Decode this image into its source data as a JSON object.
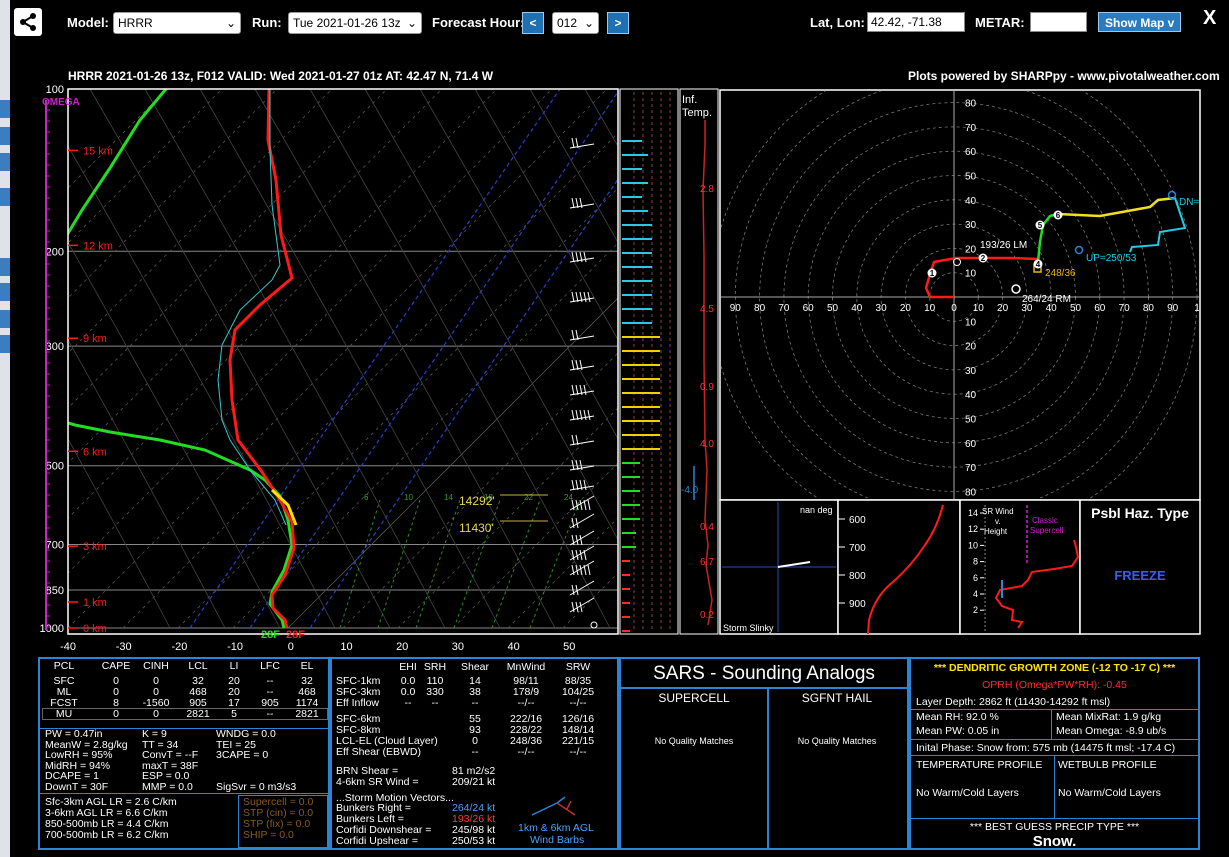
{
  "toolbar": {
    "model_label": "Model:",
    "model_value": "HRRR",
    "run_label": "Run:",
    "run_value": "Tue 2021-01-26 13z",
    "fhour_label": "Forecast Hour:",
    "prev": "<",
    "fhour_value": "012",
    "next": ">",
    "latlon_label": "Lat, Lon:",
    "latlon_value": "42.42, -71.38",
    "metar_label": "METAR:",
    "metar_value": "",
    "showmap": "Show Map v",
    "close": "X"
  },
  "header": {
    "title": "HRRR 2021-01-26 13z, F012  VALID: Wed 2021-01-27 01z  AT: 42.47 N, 71.4 W",
    "credit": "Plots powered by SHARPpy - www.pivotalweather.com"
  },
  "skewt": {
    "omega_label": "OMEGA",
    "pressure_labels": [
      {
        "p": 100,
        "t": "100"
      },
      {
        "p": 200,
        "t": "200"
      },
      {
        "p": 300,
        "t": "300"
      },
      {
        "p": 500,
        "t": "500"
      },
      {
        "p": 700,
        "t": "700"
      },
      {
        "p": 850,
        "t": "850"
      },
      {
        "p": 1000,
        "t": "1000"
      }
    ],
    "height_labels": [
      {
        "y_p": 130,
        "t": "15 km"
      },
      {
        "y_p": 195,
        "t": "12 km"
      },
      {
        "y_p": 290,
        "t": "9 km"
      },
      {
        "y_p": 470,
        "t": "6 km"
      },
      {
        "y_p": 705,
        "t": "3 km"
      },
      {
        "y_p": 895,
        "t": "1 km"
      },
      {
        "y_p": 1000,
        "t": "0 km"
      }
    ],
    "t_ticks": [
      "-40",
      "-30",
      "-20",
      "-10",
      "0",
      "10",
      "20",
      "30",
      "40",
      "50"
    ],
    "mixratio_labels": [
      "6",
      "10",
      "14",
      "18",
      "22",
      "24"
    ],
    "sfc_t": "28F",
    "sfc_td": "28F",
    "dgz_top": "14292'",
    "dgz_bot": "11430'"
  },
  "inferred_temp": {
    "label_line1": "Inf.",
    "label_line2": "Temp.",
    "values": [
      "2.8",
      "4.5",
      "0.9",
      "4.0",
      "-4.0",
      "0.4",
      "6.7",
      "0.2"
    ]
  },
  "hodograph": {
    "rings_y_up": [
      "80",
      "70",
      "60",
      "50",
      "40",
      "30",
      "20",
      "10"
    ],
    "rings_x": [
      "00",
      "90",
      "80",
      "70",
      "60",
      "50",
      "40",
      "30",
      "20",
      "10",
      "0",
      "10",
      "20",
      "30",
      "40",
      "50",
      "60",
      "70",
      "80",
      "90",
      "1"
    ],
    "rings_y_down": [
      "10",
      "20",
      "30",
      "40",
      "50",
      "60",
      "70",
      "80"
    ],
    "lm_label": "193/26 LM",
    "rm_label": "264/24 RM",
    "dn_label": "DN=",
    "up_label": "UP=250/53",
    "tag_label": "248/36",
    "points": [
      "1",
      "2",
      "3",
      "4",
      "5",
      "6"
    ]
  },
  "slinky": {
    "title": "nan deg",
    "label": "Storm Slinky"
  },
  "theta": {
    "ticks": [
      "600",
      "700",
      "800",
      "900"
    ]
  },
  "srwind": {
    "label1": "SR Wind",
    "label2": "v.",
    "label3": "Height",
    "classic1": "Classic",
    "classic2": "Supercell",
    "ticks": [
      "14",
      "12",
      "10",
      "8",
      "6",
      "4",
      "2"
    ]
  },
  "haz": {
    "title": "Psbl Haz. Type",
    "value": "FREEZE"
  },
  "parcel_table": {
    "headers": [
      "PCL",
      "CAPE",
      "CINH",
      "LCL",
      "LI",
      "LFC",
      "EL"
    ],
    "rows": [
      [
        "SFC",
        "0",
        "0",
        "32",
        "20",
        "--",
        "32"
      ],
      [
        "ML",
        "0",
        "0",
        "468",
        "20",
        "--",
        "468"
      ],
      [
        "FCST",
        "8",
        "-1560",
        "905",
        "17",
        "905",
        "1174"
      ],
      [
        "MU",
        "0",
        "0",
        "2821",
        "5",
        "--",
        "2821"
      ]
    ],
    "indices": [
      [
        "PW = 0.47in",
        "K = 9",
        "WNDG = 0.0"
      ],
      [
        "MeanW = 2.8g/kg",
        "TT = 34",
        "TEI = 25"
      ],
      [
        "LowRH = 95%",
        "ConvT = --F",
        "3CAPE = 0"
      ],
      [
        "MidRH = 94%",
        "maxT = 38F",
        ""
      ],
      [
        "DCAPE = 1",
        "ESP = 0.0",
        ""
      ],
      [
        "DownT = 30F",
        "MMP = 0.0",
        "SigSvr = 0 m3/s3"
      ]
    ],
    "lapse": [
      "Sfc-3km AGL LR = 2.6 C/km",
      "3-6km AGL LR = 6.6 C/km",
      "850-500mb LR = 4.4 C/km",
      "700-500mb LR = 6.2 C/km"
    ],
    "composites": [
      "Supercell = 0.0",
      "STP (cin) = 0.0",
      "STP (fix) = 0.0",
      "SHIP = 0.0"
    ]
  },
  "kin_table": {
    "headers": [
      "EHI",
      "SRH",
      "Shear",
      "MnWind",
      "SRW"
    ],
    "rows": [
      [
        "SFC-1km",
        "0.0",
        "110",
        "14",
        "98/11",
        "88/35"
      ],
      [
        "SFC-3km",
        "0.0",
        "330",
        "38",
        "178/9",
        "104/25"
      ],
      [
        "Eff Inflow",
        "--",
        "--",
        "--",
        "--/--",
        "--/--"
      ],
      [
        "SFC-6km",
        "",
        "",
        "55",
        "222/16",
        "126/16"
      ],
      [
        "SFC-8km",
        "",
        "",
        "93",
        "228/22",
        "148/14"
      ],
      [
        "LCL-EL (Cloud Layer)",
        "",
        "",
        "0",
        "248/36",
        "221/15"
      ],
      [
        "Eff Shear (EBWD)",
        "",
        "",
        "--",
        "--/--",
        "--/--"
      ]
    ],
    "brn_label": "BRN Shear =",
    "brn_value": "81 m2/s2",
    "sr46_label": "4-6km SR Wind =",
    "sr46_value": "209/21 kt",
    "vec_title": "...Storm Motion Vectors...",
    "vectors": [
      [
        "Bunkers Right =",
        "264/24 kt"
      ],
      [
        "Bunkers Left =",
        "193/26 kt"
      ],
      [
        "Corfidi Downshear =",
        "245/98 kt"
      ],
      [
        "Corfidi Upshear =",
        "250/53 kt"
      ]
    ],
    "barbs_line1": "1km & 6km AGL",
    "barbs_line2": "Wind Barbs"
  },
  "sars": {
    "title": "SARS - Sounding Analogs",
    "supercell": "SUPERCELL",
    "hail": "SGFNT HAIL",
    "sup_result": "No Quality Matches",
    "hail_result": "No Quality Matches"
  },
  "dgz": {
    "title": "*** DENDRITIC GROWTH ZONE (-12 TO -17 C) ***",
    "oprh": "OPRH (Omega*PW*RH): -0.45",
    "depth": "Layer Depth: 2862 ft (11430-14292 ft msl)",
    "meanrh": "Mean RH: 92.0 %",
    "mixrat": "Mean MixRat: 1.9 g/kg",
    "meanpw": "Mean PW: 0.05 in",
    "omega": "Mean Omega: -8.9 ub/s",
    "phase": "Inital Phase: Snow from: 575 mb (14475 ft msl; -17.4 C)",
    "temp_title": "TEMPERATURE PROFILE",
    "wb_title": "WETBULB PROFILE",
    "temp_result": "No Warm/Cold Layers",
    "wb_result": "No Warm/Cold Layers",
    "precip_title": "*** BEST GUESS PRECIP TYPE ***",
    "precip_value": "Snow."
  },
  "colors": {
    "accent_blue": "#2c84d6",
    "temp_red": "#ff1a1a",
    "dewp_green": "#22dd22",
    "omega_magenta": "#cc22cc",
    "wetbulb_cyan": "#33cccc",
    "dgz_yellow": "#e8d84a"
  }
}
